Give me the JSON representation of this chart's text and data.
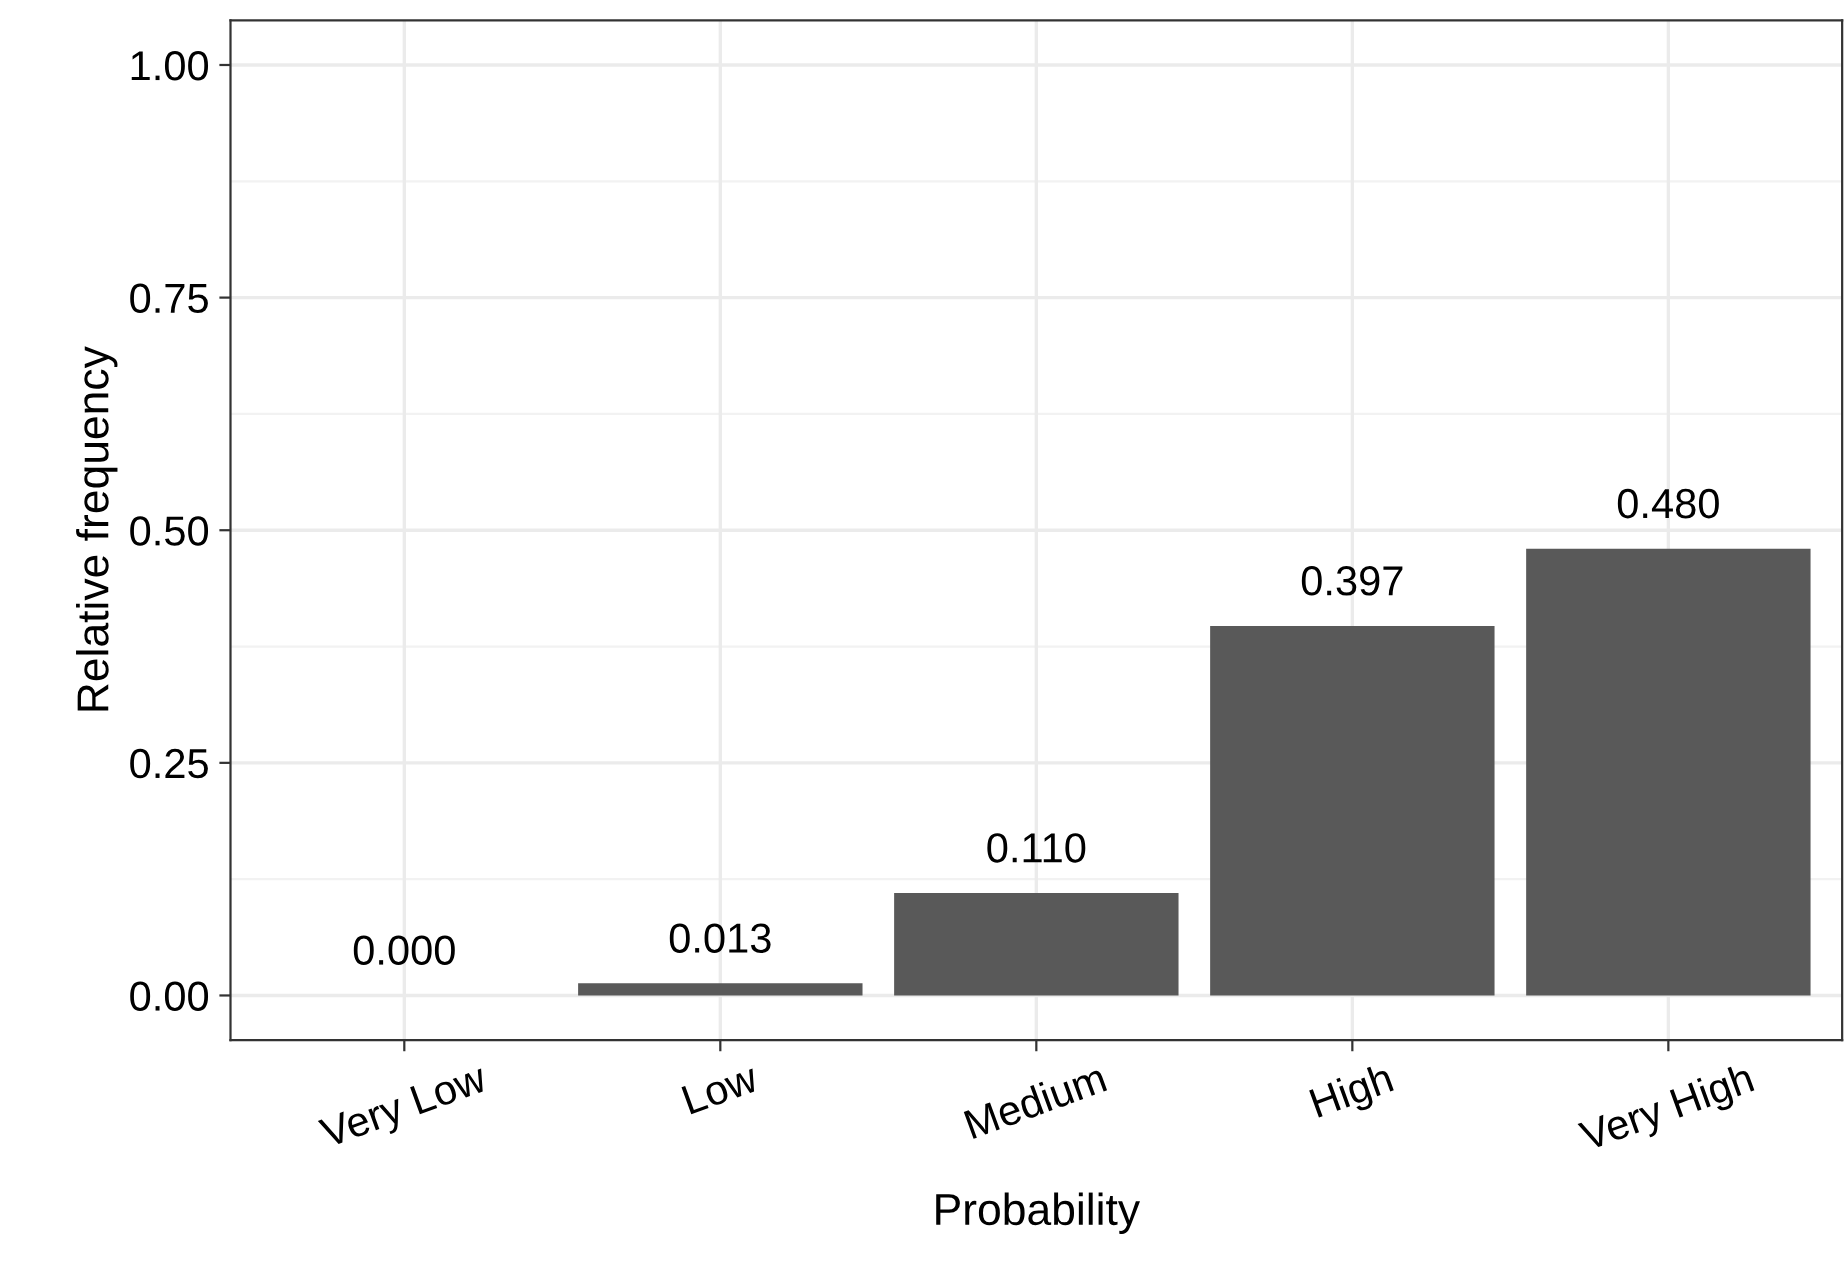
{
  "chart_data": {
    "type": "bar",
    "xlabel": "Probability",
    "ylabel": "Relative frequency",
    "categories": [
      "Very Low",
      "Low",
      "Medium",
      "High",
      "Very High"
    ],
    "values": [
      0.0,
      0.013,
      0.11,
      0.397,
      0.48
    ],
    "value_labels": [
      "0.000",
      "0.013",
      "0.110",
      "0.397",
      "0.480"
    ],
    "color": "#595959",
    "ylim": [
      -0.048,
      1.048
    ],
    "yticks": [
      {
        "value": 0,
        "label": "0.00"
      },
      {
        "value": 0.25,
        "label": "0.25"
      },
      {
        "value": 0.5,
        "label": "0.50"
      },
      {
        "value": 0.75,
        "label": "0.75"
      },
      {
        "value": 1,
        "label": "1.00"
      }
    ],
    "grid": true,
    "legend": false
  }
}
